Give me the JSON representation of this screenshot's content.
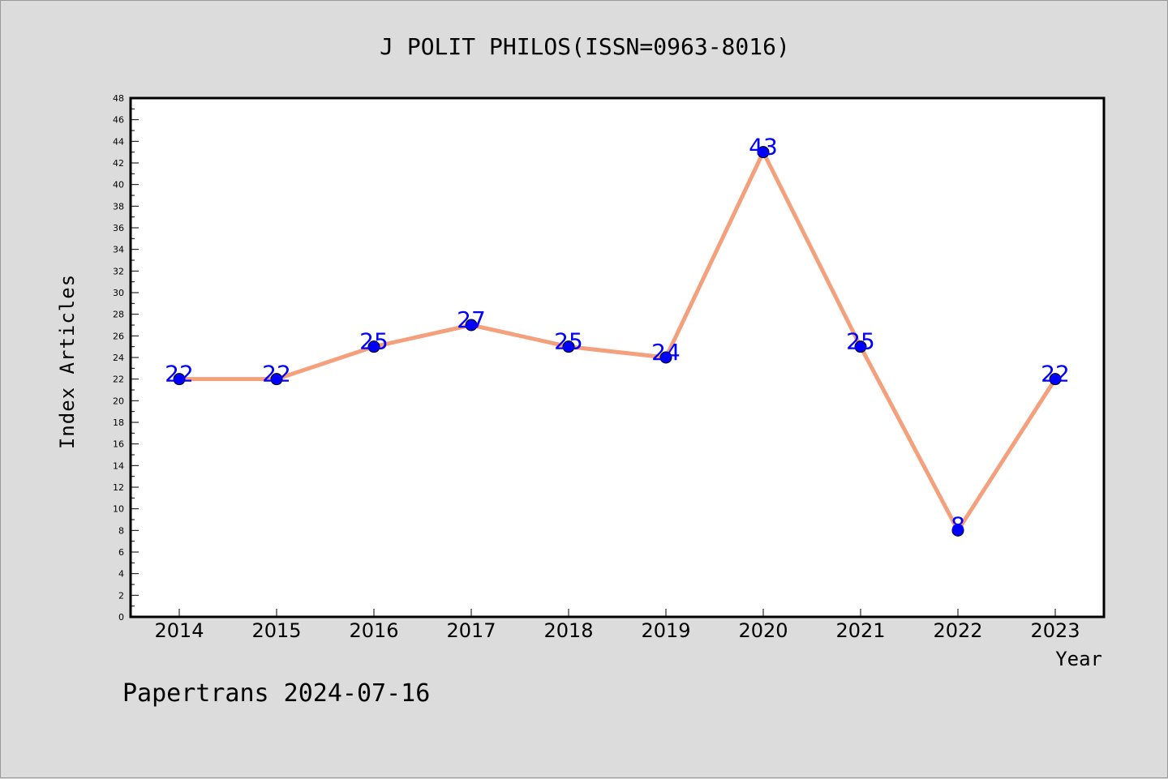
{
  "footer": "Papertrans 2024-07-16",
  "colors": {
    "background": "#dcdcdc",
    "plot_background": "#ffffff",
    "line": "#f4a07c",
    "marker": "#0000ff",
    "data_label": "#0000ff"
  },
  "chart_data": {
    "type": "line",
    "title": "J POLIT PHILOS(ISSN=0963-8016)",
    "xlabel": "Year",
    "ylabel": "Index Articles",
    "categories": [
      "2014",
      "2015",
      "2016",
      "2017",
      "2018",
      "2019",
      "2020",
      "2021",
      "2022",
      "2023"
    ],
    "series": [
      {
        "values": [
          22,
          22,
          25,
          27,
          25,
          24,
          43,
          25,
          8,
          22
        ]
      }
    ],
    "ylim": [
      0,
      48
    ],
    "ytick_step": 2,
    "ytick_labels": [
      "0",
      "2",
      "4",
      "6",
      "8",
      "10",
      "12",
      "14",
      "16",
      "18",
      "20",
      "22",
      "24",
      "26",
      "28",
      "30",
      "32",
      "34",
      "36",
      "38",
      "40",
      "42",
      "44",
      "46",
      "48"
    ],
    "data_labels": [
      "22",
      "22",
      "25",
      "27",
      "25",
      "24",
      "43",
      "25",
      "8",
      "22"
    ],
    "grid": false,
    "legend": "none"
  }
}
